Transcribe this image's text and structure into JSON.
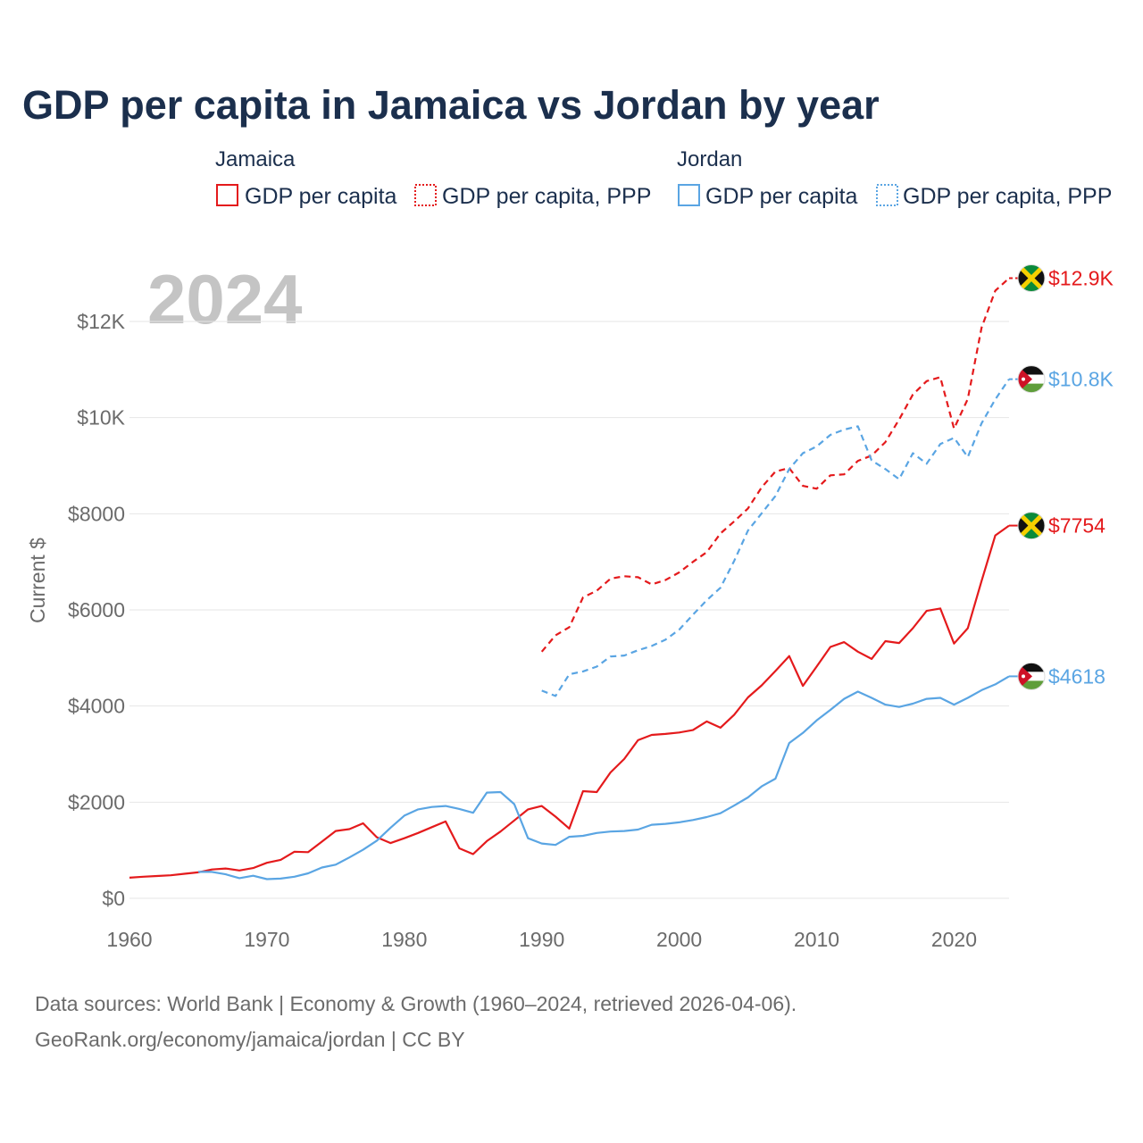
{
  "title": "GDP per capita in Jamaica vs Jordan by year",
  "year_label": "2024",
  "legend": {
    "groups": [
      {
        "country": "Jamaica",
        "color": "#e41a1c",
        "items": [
          {
            "label": "GDP per capita",
            "style": "solid"
          },
          {
            "label": "GDP per capita, PPP",
            "style": "dashed"
          }
        ]
      },
      {
        "country": "Jordan",
        "color": "#5aa5e3",
        "items": [
          {
            "label": "GDP per capita",
            "style": "solid"
          },
          {
            "label": "GDP per capita, PPP",
            "style": "dashed"
          }
        ]
      }
    ]
  },
  "end_labels": {
    "jamaica_ppp": "$12.9K",
    "jordan_ppp": "$10.8K",
    "jamaica_gdp": "$7754",
    "jordan_gdp": "$4618"
  },
  "source": {
    "line1": "Data sources: World Bank | Economy & Growth (1960–2024, retrieved 2026-04-06).",
    "line2": "GeoRank.org/economy/jamaica/jordan | CC BY"
  },
  "chart_data": {
    "type": "line",
    "title": "GDP per capita in Jamaica vs Jordan by year",
    "xlabel": "",
    "ylabel": "Current $",
    "xlim": [
      1960,
      2024
    ],
    "ylim": [
      0,
      13000
    ],
    "xticks": [
      1960,
      1970,
      1980,
      1990,
      2000,
      2010,
      2020
    ],
    "xtick_labels": [
      "1960",
      "1970",
      "1980",
      "1990",
      "2000",
      "2010",
      "2020"
    ],
    "yticks": [
      0,
      2000,
      4000,
      6000,
      8000,
      10000,
      12000
    ],
    "ytick_labels": [
      "$0",
      "$2000",
      "$4000",
      "$6000",
      "$8000",
      "$10K",
      "$12K"
    ],
    "grid": true,
    "series": [
      {
        "name": "Jamaica GDP per capita",
        "country": "Jamaica",
        "color": "#e41a1c",
        "dash": false,
        "x": [
          1960,
          1961,
          1962,
          1963,
          1964,
          1965,
          1966,
          1967,
          1968,
          1969,
          1970,
          1971,
          1972,
          1973,
          1974,
          1975,
          1976,
          1977,
          1978,
          1979,
          1980,
          1981,
          1982,
          1983,
          1984,
          1985,
          1986,
          1987,
          1988,
          1989,
          1990,
          1991,
          1992,
          1993,
          1994,
          1995,
          1996,
          1997,
          1998,
          1999,
          2000,
          2001,
          2002,
          2003,
          2004,
          2005,
          2006,
          2007,
          2008,
          2009,
          2010,
          2011,
          2012,
          2013,
          2014,
          2015,
          2016,
          2017,
          2018,
          2019,
          2020,
          2021,
          2022,
          2023,
          2024
        ],
        "values": [
          430,
          450,
          465,
          480,
          510,
          540,
          600,
          620,
          580,
          630,
          740,
          800,
          970,
          960,
          1180,
          1400,
          1440,
          1560,
          1270,
          1150,
          1250,
          1360,
          1480,
          1600,
          1040,
          920,
          1190,
          1390,
          1620,
          1850,
          1920,
          1700,
          1450,
          2230,
          2210,
          2620,
          2900,
          3290,
          3400,
          3420,
          3450,
          3500,
          3680,
          3550,
          3820,
          4180,
          4430,
          4730,
          5040,
          4420,
          4820,
          5230,
          5330,
          5130,
          4980,
          5350,
          5310,
          5620,
          5980,
          6030,
          5300,
          5620,
          6600,
          7550,
          7754
        ]
      },
      {
        "name": "Jamaica GDP per capita, PPP",
        "country": "Jamaica",
        "color": "#e41a1c",
        "dash": true,
        "x": [
          1990,
          1991,
          1992,
          1993,
          1994,
          1995,
          1996,
          1997,
          1998,
          1999,
          2000,
          2001,
          2002,
          2003,
          2004,
          2005,
          2006,
          2007,
          2008,
          2009,
          2010,
          2011,
          2012,
          2013,
          2014,
          2015,
          2016,
          2017,
          2018,
          2019,
          2020,
          2021,
          2022,
          2023,
          2024
        ],
        "values": [
          5130,
          5470,
          5640,
          6260,
          6400,
          6650,
          6700,
          6680,
          6530,
          6620,
          6780,
          7000,
          7200,
          7590,
          7840,
          8110,
          8550,
          8880,
          8950,
          8580,
          8520,
          8800,
          8820,
          9100,
          9210,
          9490,
          9960,
          10480,
          10760,
          10840,
          9770,
          10390,
          11870,
          12640,
          12900
        ]
      },
      {
        "name": "Jordan GDP per capita",
        "country": "Jordan",
        "color": "#5aa5e3",
        "dash": false,
        "x": [
          1965,
          1966,
          1967,
          1968,
          1969,
          1970,
          1971,
          1972,
          1973,
          1974,
          1975,
          1976,
          1977,
          1978,
          1979,
          1980,
          1981,
          1982,
          1983,
          1984,
          1985,
          1986,
          1987,
          1988,
          1989,
          1990,
          1991,
          1992,
          1993,
          1994,
          1995,
          1996,
          1997,
          1998,
          1999,
          2000,
          2001,
          2002,
          2003,
          2004,
          2005,
          2006,
          2007,
          2008,
          2009,
          2010,
          2011,
          2012,
          2013,
          2014,
          2015,
          2016,
          2017,
          2018,
          2019,
          2020,
          2021,
          2022,
          2023,
          2024
        ],
        "values": [
          550,
          550,
          500,
          420,
          470,
          400,
          410,
          450,
          520,
          640,
          700,
          850,
          1010,
          1200,
          1470,
          1720,
          1850,
          1900,
          1920,
          1860,
          1780,
          2200,
          2210,
          1960,
          1250,
          1140,
          1110,
          1280,
          1300,
          1360,
          1390,
          1400,
          1430,
          1530,
          1550,
          1580,
          1630,
          1690,
          1770,
          1930,
          2100,
          2330,
          2490,
          3230,
          3440,
          3700,
          3920,
          4150,
          4300,
          4170,
          4030,
          3980,
          4050,
          4150,
          4170,
          4030,
          4170,
          4330,
          4450,
          4618
        ]
      },
      {
        "name": "Jordan GDP per capita, PPP",
        "country": "Jordan",
        "color": "#5aa5e3",
        "dash": true,
        "x": [
          1990,
          1991,
          1992,
          1993,
          1994,
          1995,
          1996,
          1997,
          1998,
          1999,
          2000,
          2001,
          2002,
          2003,
          2004,
          2005,
          2006,
          2007,
          2008,
          2009,
          2010,
          2011,
          2012,
          2013,
          2014,
          2015,
          2016,
          2017,
          2018,
          2019,
          2020,
          2021,
          2022,
          2023,
          2024
        ],
        "values": [
          4320,
          4210,
          4660,
          4720,
          4820,
          5030,
          5050,
          5160,
          5250,
          5380,
          5590,
          5900,
          6200,
          6460,
          7020,
          7650,
          8010,
          8370,
          8930,
          9260,
          9400,
          9640,
          9750,
          9820,
          9110,
          8930,
          8720,
          9260,
          9040,
          9450,
          9580,
          9180,
          9880,
          10380,
          10800
        ]
      }
    ]
  }
}
